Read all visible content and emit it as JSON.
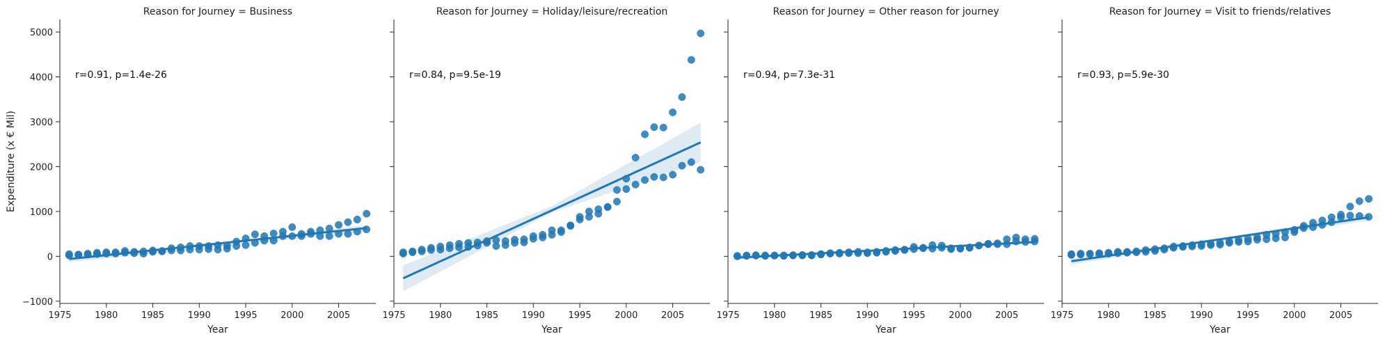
{
  "chart_data": {
    "type": "scatter",
    "facet_variable": "Reason for Journey",
    "ylabel": "Expenditure (x € Mil)",
    "xlabel": "Year",
    "xlim": [
      1975,
      2009
    ],
    "ylim": [
      -1050,
      5280
    ],
    "xticks": [
      "1975",
      "1980",
      "1985",
      "1990",
      "1995",
      "2000",
      "2005"
    ],
    "yticks": [
      "−1000",
      "0",
      "1000",
      "2000",
      "3000",
      "4000",
      "5000"
    ],
    "grid": false,
    "colors": {
      "points": "#1f77b4",
      "band": "#1f77b4"
    },
    "panels": [
      {
        "title": "Reason for Journey = Business",
        "annotation": "r=0.91, p=1.4e-26",
        "regression": {
          "x": [
            1976,
            2008
          ],
          "y": [
            -60,
            630
          ]
        },
        "ci": {
          "x": [
            1976,
            1992,
            2008
          ],
          "upper": [
            10,
            270,
            700
          ],
          "lower": [
            -130,
            210,
            560
          ]
        },
        "points": [
          [
            1976,
            20
          ],
          [
            1976,
            50
          ],
          [
            1977,
            30
          ],
          [
            1977,
            40
          ],
          [
            1978,
            40
          ],
          [
            1978,
            60
          ],
          [
            1979,
            50
          ],
          [
            1979,
            80
          ],
          [
            1980,
            60
          ],
          [
            1980,
            90
          ],
          [
            1981,
            60
          ],
          [
            1981,
            90
          ],
          [
            1982,
            80
          ],
          [
            1982,
            120
          ],
          [
            1983,
            70
          ],
          [
            1983,
            100
          ],
          [
            1984,
            60
          ],
          [
            1984,
            110
          ],
          [
            1985,
            100
          ],
          [
            1985,
            130
          ],
          [
            1986,
            110
          ],
          [
            1986,
            120
          ],
          [
            1987,
            130
          ],
          [
            1987,
            180
          ],
          [
            1988,
            130
          ],
          [
            1988,
            200
          ],
          [
            1989,
            150
          ],
          [
            1989,
            230
          ],
          [
            1990,
            150
          ],
          [
            1990,
            230
          ],
          [
            1991,
            160
          ],
          [
            1991,
            230
          ],
          [
            1992,
            150
          ],
          [
            1992,
            250
          ],
          [
            1993,
            170
          ],
          [
            1993,
            240
          ],
          [
            1994,
            230
          ],
          [
            1994,
            330
          ],
          [
            1995,
            250
          ],
          [
            1995,
            400
          ],
          [
            1996,
            300
          ],
          [
            1996,
            490
          ],
          [
            1997,
            350
          ],
          [
            1997,
            450
          ],
          [
            1998,
            350
          ],
          [
            1998,
            510
          ],
          [
            1999,
            450
          ],
          [
            1999,
            550
          ],
          [
            2000,
            450
          ],
          [
            2000,
            650
          ],
          [
            2001,
            450
          ],
          [
            2001,
            500
          ],
          [
            2002,
            550
          ],
          [
            2002,
            500
          ],
          [
            2003,
            450
          ],
          [
            2003,
            580
          ],
          [
            2004,
            450
          ],
          [
            2004,
            620
          ],
          [
            2005,
            500
          ],
          [
            2005,
            700
          ],
          [
            2006,
            500
          ],
          [
            2006,
            760
          ],
          [
            2007,
            550
          ],
          [
            2007,
            820
          ],
          [
            2008,
            600
          ],
          [
            2008,
            950
          ]
        ]
      },
      {
        "title": "Reason for Journey = Holiday/leisure/recreation",
        "annotation": "r=0.84, p=9.5e-19",
        "regression": {
          "x": [
            1976,
            2008
          ],
          "y": [
            -490,
            2540
          ]
        },
        "ci": {
          "x": [
            1976,
            1992,
            2008
          ],
          "upper": [
            -200,
            1120,
            2980
          ],
          "lower": [
            -780,
            980,
            2100
          ]
        },
        "points": [
          [
            1976,
            60
          ],
          [
            1976,
            90
          ],
          [
            1977,
            90
          ],
          [
            1977,
            110
          ],
          [
            1978,
            110
          ],
          [
            1978,
            150
          ],
          [
            1979,
            140
          ],
          [
            1979,
            190
          ],
          [
            1980,
            150
          ],
          [
            1980,
            220
          ],
          [
            1981,
            180
          ],
          [
            1981,
            250
          ],
          [
            1982,
            200
          ],
          [
            1982,
            280
          ],
          [
            1983,
            210
          ],
          [
            1983,
            300
          ],
          [
            1984,
            240
          ],
          [
            1984,
            310
          ],
          [
            1985,
            300
          ],
          [
            1985,
            340
          ],
          [
            1986,
            230
          ],
          [
            1986,
            360
          ],
          [
            1987,
            250
          ],
          [
            1987,
            340
          ],
          [
            1988,
            300
          ],
          [
            1988,
            370
          ],
          [
            1989,
            310
          ],
          [
            1989,
            380
          ],
          [
            1990,
            390
          ],
          [
            1990,
            450
          ],
          [
            1991,
            420
          ],
          [
            1991,
            480
          ],
          [
            1992,
            480
          ],
          [
            1992,
            580
          ],
          [
            1993,
            540
          ],
          [
            1993,
            580
          ],
          [
            1994,
            680
          ],
          [
            1994,
            690
          ],
          [
            1995,
            820
          ],
          [
            1995,
            880
          ],
          [
            1996,
            880
          ],
          [
            1996,
            1000
          ],
          [
            1997,
            950
          ],
          [
            1997,
            1050
          ],
          [
            1998,
            1100
          ],
          [
            1998,
            1100
          ],
          [
            1999,
            1220
          ],
          [
            1999,
            1480
          ],
          [
            2000,
            1500
          ],
          [
            2000,
            1730
          ],
          [
            2001,
            1600
          ],
          [
            2001,
            2200
          ],
          [
            2002,
            1700
          ],
          [
            2002,
            2720
          ],
          [
            2003,
            1770
          ],
          [
            2003,
            2880
          ],
          [
            2004,
            1760
          ],
          [
            2004,
            2870
          ],
          [
            2005,
            1820
          ],
          [
            2005,
            3210
          ],
          [
            2006,
            2020
          ],
          [
            2006,
            3550
          ],
          [
            2007,
            2100
          ],
          [
            2007,
            4380
          ],
          [
            2008,
            1930
          ],
          [
            2008,
            4970
          ]
        ]
      },
      {
        "title": "Reason for Journey = Other reason for journey",
        "annotation": "r=0.94, p=7.3e-31",
        "regression": {
          "x": [
            1976,
            2008
          ],
          "y": [
            -30,
            320
          ]
        },
        "ci": {
          "x": [
            1976,
            1992,
            2008
          ],
          "upper": [
            0,
            160,
            350
          ],
          "lower": [
            -60,
            125,
            290
          ]
        },
        "points": [
          [
            1976,
            0
          ],
          [
            1976,
            10
          ],
          [
            1977,
            10
          ],
          [
            1977,
            20
          ],
          [
            1978,
            15
          ],
          [
            1978,
            25
          ],
          [
            1979,
            10
          ],
          [
            1979,
            20
          ],
          [
            1980,
            15
          ],
          [
            1980,
            20
          ],
          [
            1981,
            10
          ],
          [
            1981,
            20
          ],
          [
            1982,
            20
          ],
          [
            1982,
            25
          ],
          [
            1983,
            20
          ],
          [
            1983,
            30
          ],
          [
            1984,
            20
          ],
          [
            1984,
            30
          ],
          [
            1985,
            40
          ],
          [
            1985,
            50
          ],
          [
            1986,
            60
          ],
          [
            1986,
            70
          ],
          [
            1987,
            60
          ],
          [
            1987,
            80
          ],
          [
            1988,
            70
          ],
          [
            1988,
            90
          ],
          [
            1989,
            70
          ],
          [
            1989,
            100
          ],
          [
            1990,
            70
          ],
          [
            1990,
            90
          ],
          [
            1991,
            80
          ],
          [
            1991,
            100
          ],
          [
            1992,
            100
          ],
          [
            1992,
            120
          ],
          [
            1993,
            120
          ],
          [
            1993,
            140
          ],
          [
            1994,
            140
          ],
          [
            1994,
            150
          ],
          [
            1995,
            160
          ],
          [
            1995,
            210
          ],
          [
            1996,
            190
          ],
          [
            1996,
            180
          ],
          [
            1997,
            170
          ],
          [
            1997,
            250
          ],
          [
            1998,
            190
          ],
          [
            1998,
            240
          ],
          [
            1999,
            160
          ],
          [
            1999,
            180
          ],
          [
            2000,
            170
          ],
          [
            2000,
            180
          ],
          [
            2001,
            190
          ],
          [
            2001,
            200
          ],
          [
            2002,
            240
          ],
          [
            2002,
            240
          ],
          [
            2003,
            280
          ],
          [
            2003,
            270
          ],
          [
            2004,
            270
          ],
          [
            2004,
            290
          ],
          [
            2005,
            270
          ],
          [
            2005,
            380
          ],
          [
            2006,
            330
          ],
          [
            2006,
            420
          ],
          [
            2007,
            320
          ],
          [
            2007,
            380
          ],
          [
            2008,
            330
          ],
          [
            2008,
            390
          ]
        ]
      },
      {
        "title": "Reason for Journey = Visit to friends/relatives",
        "annotation": "r=0.93, p=5.9e-30",
        "regression": {
          "x": [
            1976,
            2008
          ],
          "y": [
            -110,
            870
          ]
        },
        "ci": {
          "x": [
            1976,
            1992,
            2008
          ],
          "upper": [
            -40,
            395,
            950
          ],
          "lower": [
            -180,
            340,
            790
          ]
        },
        "points": [
          [
            1976,
            30
          ],
          [
            1976,
            50
          ],
          [
            1977,
            40
          ],
          [
            1977,
            60
          ],
          [
            1978,
            50
          ],
          [
            1978,
            60
          ],
          [
            1979,
            50
          ],
          [
            1979,
            70
          ],
          [
            1980,
            60
          ],
          [
            1980,
            80
          ],
          [
            1981,
            70
          ],
          [
            1981,
            100
          ],
          [
            1982,
            80
          ],
          [
            1982,
            100
          ],
          [
            1983,
            90
          ],
          [
            1983,
            110
          ],
          [
            1984,
            100
          ],
          [
            1984,
            140
          ],
          [
            1985,
            120
          ],
          [
            1985,
            160
          ],
          [
            1986,
            150
          ],
          [
            1986,
            180
          ],
          [
            1987,
            190
          ],
          [
            1987,
            220
          ],
          [
            1988,
            210
          ],
          [
            1988,
            230
          ],
          [
            1989,
            220
          ],
          [
            1989,
            250
          ],
          [
            1990,
            230
          ],
          [
            1990,
            270
          ],
          [
            1991,
            250
          ],
          [
            1991,
            280
          ],
          [
            1992,
            260
          ],
          [
            1992,
            300
          ],
          [
            1993,
            300
          ],
          [
            1993,
            330
          ],
          [
            1994,
            320
          ],
          [
            1994,
            360
          ],
          [
            1995,
            330
          ],
          [
            1995,
            390
          ],
          [
            1996,
            370
          ],
          [
            1996,
            420
          ],
          [
            1997,
            380
          ],
          [
            1997,
            480
          ],
          [
            1998,
            400
          ],
          [
            1998,
            500
          ],
          [
            1999,
            420
          ],
          [
            1999,
            540
          ],
          [
            2000,
            540
          ],
          [
            2000,
            590
          ],
          [
            2001,
            630
          ],
          [
            2001,
            680
          ],
          [
            2002,
            650
          ],
          [
            2002,
            750
          ],
          [
            2003,
            700
          ],
          [
            2003,
            800
          ],
          [
            2004,
            760
          ],
          [
            2004,
            870
          ],
          [
            2005,
            870
          ],
          [
            2005,
            930
          ],
          [
            2006,
            910
          ],
          [
            2006,
            1110
          ],
          [
            2007,
            900
          ],
          [
            2007,
            1230
          ],
          [
            2008,
            880
          ],
          [
            2008,
            1280
          ]
        ]
      }
    ]
  }
}
